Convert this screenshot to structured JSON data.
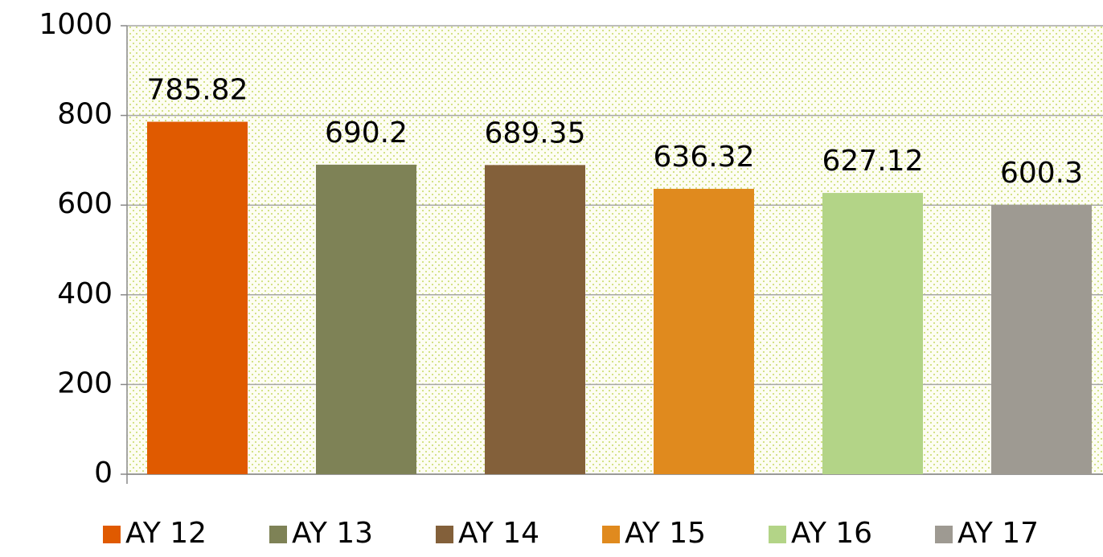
{
  "chart_data": {
    "type": "bar",
    "categories": [
      null
    ],
    "series": [
      {
        "name": "AY 12",
        "color": "#e05a00",
        "values": [
          785.82
        ]
      },
      {
        "name": "AY 13",
        "color": "#7e8256",
        "values": [
          690.2
        ]
      },
      {
        "name": "AY 14",
        "color": "#83603a",
        "values": [
          689.35
        ]
      },
      {
        "name": "AY 15",
        "color": "#e08a1e",
        "values": [
          636.32
        ]
      },
      {
        "name": "AY 16",
        "color": "#b3d487",
        "values": [
          627.12
        ]
      },
      {
        "name": "AY 17",
        "color": "#9e9a92",
        "values": [
          600.3
        ]
      }
    ],
    "ylim": [
      0,
      1000
    ],
    "yticks": [
      0,
      200,
      400,
      600,
      800,
      1000
    ],
    "grid": true,
    "legend": "bottom"
  }
}
